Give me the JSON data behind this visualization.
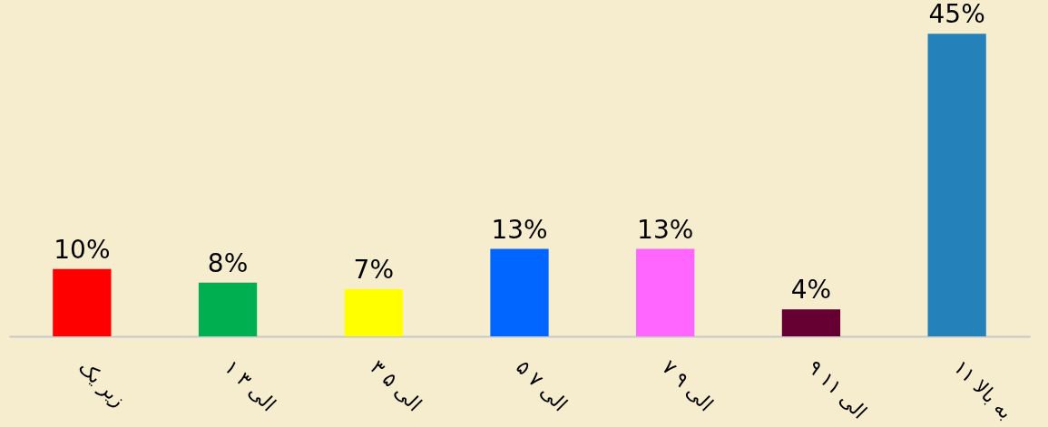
{
  "chart_data": {
    "type": "bar",
    "categories": [
      "زیر یک",
      "۱ الی ۳",
      "۳ الی ۵",
      "۵ الی ۷",
      "۷ الی ۹",
      "۹ الی ۱۱",
      "۱۱ به بالا"
    ],
    "values": [
      10,
      8,
      7,
      13,
      13,
      4,
      45
    ],
    "colors": [
      "#ff0000",
      "#00b050",
      "#ffff00",
      "#0066ff",
      "#ff66ff",
      "#660033",
      "#2581ba"
    ],
    "value_labels": [
      "10%",
      "8%",
      "7%",
      "13%",
      "13%",
      "4%",
      "45%"
    ],
    "grid": false
  }
}
